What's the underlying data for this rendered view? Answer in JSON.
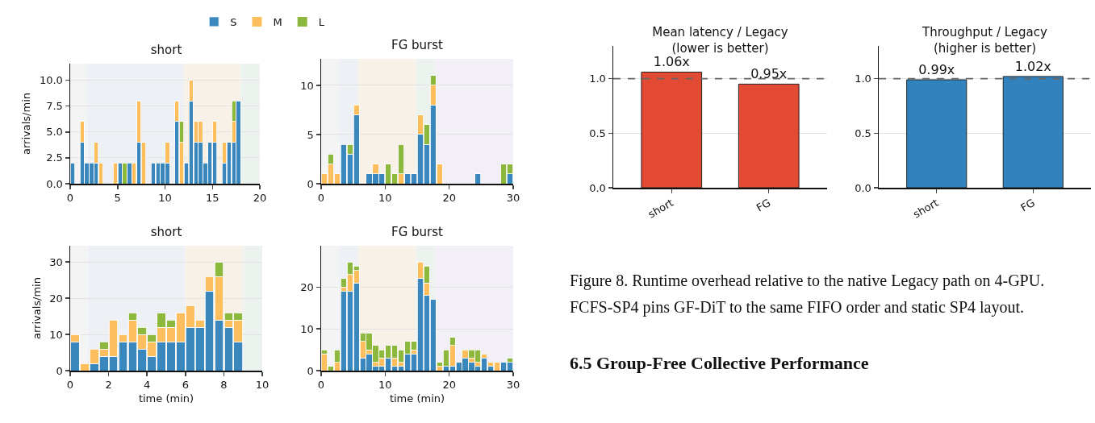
{
  "chart_data": [
    {
      "type": "bar",
      "title": "short",
      "ylabel": "arrivals/min",
      "stacked": true,
      "legend": "top",
      "grid": "y",
      "x": [
        0.25,
        1.25,
        1.75,
        2.25,
        2.75,
        3.25,
        4.75,
        5.25,
        5.75,
        6.25,
        6.75,
        7.25,
        7.75,
        8.75,
        9.25,
        9.75,
        10.25,
        11.25,
        11.75,
        12.25,
        12.75,
        13.25,
        13.75,
        14.25,
        14.75,
        15.25,
        16.25,
        16.75,
        17.25,
        17.75
      ],
      "series": [
        {
          "name": "S",
          "color": "#3a87bd",
          "values": [
            2,
            4,
            2,
            2,
            2,
            0,
            0,
            2,
            0,
            2,
            0,
            4,
            0,
            2,
            2,
            2,
            2,
            6,
            0,
            2,
            8,
            4,
            4,
            2,
            4,
            4,
            2,
            4,
            4,
            8
          ]
        },
        {
          "name": "M",
          "color": "#fdbf5e",
          "values": [
            0,
            2,
            0,
            0,
            2,
            2,
            2,
            0,
            0,
            0,
            2,
            4,
            4,
            0,
            0,
            0,
            2,
            2,
            4,
            0,
            2,
            2,
            2,
            0,
            0,
            2,
            2,
            0,
            2,
            0
          ]
        },
        {
          "name": "L",
          "color": "#8db83e",
          "values": [
            0,
            0,
            0,
            0,
            0,
            0,
            0,
            0,
            2,
            0,
            0,
            0,
            0,
            0,
            0,
            0,
            0,
            0,
            2,
            0,
            0,
            0,
            0,
            0,
            0,
            0,
            0,
            0,
            2,
            0
          ]
        }
      ],
      "xlim": [
        0,
        20
      ],
      "xticks": [
        0,
        5,
        10,
        15,
        20
      ],
      "ylim": [
        0,
        11.6
      ],
      "yticks": [
        {
          "value": 0,
          "label": "0.0"
        },
        {
          "value": 2.5,
          "label": "2.5"
        },
        {
          "value": 5,
          "label": "5.0"
        },
        {
          "value": 7.5,
          "label": "7.5"
        },
        {
          "value": 10,
          "label": "10.0"
        }
      ],
      "bands": [
        {
          "axis": "x",
          "from": 0,
          "to": 1.8,
          "color": "#f4f4f4"
        },
        {
          "axis": "x",
          "from": 1.8,
          "to": 12,
          "color": "#edf1f6"
        },
        {
          "axis": "x",
          "from": 12,
          "to": 18,
          "color": "#f8f1e7"
        },
        {
          "axis": "x",
          "from": 18,
          "to": 20,
          "color": "#ecf3ee"
        }
      ]
    },
    {
      "type": "bar",
      "title": "FG burst",
      "stacked": true,
      "grid": "y",
      "x": [
        0.5,
        1.5,
        2.5,
        3.5,
        4.5,
        5.5,
        7.5,
        8.5,
        9.5,
        10.5,
        11.5,
        12.5,
        13.5,
        14.5,
        15.5,
        16.5,
        17.5,
        18.5,
        24.5,
        28.5,
        29.5
      ],
      "series": [
        {
          "color": "#3a87bd",
          "values": [
            0,
            0,
            0,
            4,
            3,
            7,
            1,
            1,
            1,
            0,
            0,
            0,
            1,
            1,
            5,
            4,
            8,
            0,
            1,
            0,
            1
          ]
        },
        {
          "color": "#fdbf5e",
          "values": [
            1,
            2,
            1,
            0,
            0,
            1,
            0,
            1,
            0,
            0,
            0,
            1,
            0,
            0,
            2,
            0,
            2,
            2,
            0,
            0,
            0
          ]
        },
        {
          "color": "#8db83e",
          "values": [
            0,
            1,
            0,
            0,
            1,
            0,
            0,
            0,
            0,
            2,
            1,
            3,
            0,
            0,
            0,
            2,
            1,
            0,
            0,
            2,
            1
          ]
        }
      ],
      "xlim": [
        0,
        30
      ],
      "xticks": [
        0,
        10,
        20,
        30
      ],
      "ylim": [
        0,
        12.7
      ],
      "yticks": [
        0,
        5,
        10
      ],
      "bands": [
        {
          "axis": "x",
          "from": 0,
          "to": 2.8,
          "color": "#f4f4f4"
        },
        {
          "axis": "x",
          "from": 2.8,
          "to": 5.8,
          "color": "#edf1f6"
        },
        {
          "axis": "x",
          "from": 5.8,
          "to": 14.8,
          "color": "#f8f1e7"
        },
        {
          "axis": "x",
          "from": 14.8,
          "to": 17.8,
          "color": "#ecf3ee"
        },
        {
          "axis": "x",
          "from": 17.8,
          "to": 30,
          "color": "#f2eff6"
        }
      ]
    },
    {
      "type": "bar",
      "title": "short",
      "xlabel": "time (min)",
      "ylabel": "arrivals/min",
      "stacked": true,
      "grid": "y",
      "x": [
        0.25,
        0.75,
        1.25,
        1.75,
        2.25,
        2.75,
        3.25,
        3.75,
        4.25,
        4.75,
        5.25,
        5.75,
        6.25,
        6.75,
        7.25,
        7.75,
        8.25,
        8.75
      ],
      "series": [
        {
          "color": "#3a87bd",
          "values": [
            8,
            0,
            2,
            4,
            4,
            8,
            8,
            6,
            4,
            8,
            8,
            8,
            12,
            12,
            22,
            14,
            12,
            8
          ]
        },
        {
          "color": "#fdbf5e",
          "values": [
            2,
            2,
            4,
            2,
            10,
            2,
            6,
            4,
            4,
            4,
            4,
            8,
            6,
            2,
            4,
            12,
            2,
            6
          ]
        },
        {
          "color": "#8db83e",
          "values": [
            0,
            0,
            0,
            2,
            0,
            0,
            2,
            2,
            2,
            4,
            2,
            0,
            0,
            0,
            0,
            4,
            2,
            2
          ]
        }
      ],
      "xlim": [
        0,
        10
      ],
      "xticks": [
        0,
        2,
        4,
        6,
        8,
        10
      ],
      "ylim": [
        0,
        34.5
      ],
      "yticks": [
        0,
        10,
        20,
        30
      ],
      "bands": [
        {
          "axis": "x",
          "from": 0,
          "to": 0.9,
          "color": "#f4f4f4"
        },
        {
          "axis": "x",
          "from": 0.9,
          "to": 6,
          "color": "#edf1f6"
        },
        {
          "axis": "x",
          "from": 6,
          "to": 9,
          "color": "#f8f1e7"
        },
        {
          "axis": "x",
          "from": 9,
          "to": 10,
          "color": "#ecf3ee"
        }
      ]
    },
    {
      "type": "bar",
      "title": "FG burst",
      "xlabel": "time (min)",
      "stacked": true,
      "grid": "y",
      "x": [
        0.5,
        1.5,
        2.5,
        3.5,
        4.5,
        5.5,
        6.5,
        7.5,
        8.5,
        9.5,
        10.5,
        11.5,
        12.5,
        13.5,
        14.5,
        15.5,
        16.5,
        17.5,
        18.5,
        19.5,
        20.5,
        21.5,
        22.5,
        23.5,
        24.5,
        25.5,
        26.5,
        27.5,
        28.5,
        29.5
      ],
      "series": [
        {
          "color": "#3a87bd",
          "values": [
            0,
            0,
            0,
            19,
            19,
            21,
            3,
            4,
            1,
            1,
            3,
            1,
            1,
            4,
            4,
            22,
            18,
            17,
            0,
            1,
            1,
            2,
            3,
            2,
            1,
            3,
            1,
            0,
            2,
            2
          ]
        },
        {
          "color": "#fdbf5e",
          "values": [
            4,
            0,
            2,
            1,
            4,
            3,
            4,
            1,
            1,
            2,
            0,
            2,
            1,
            0,
            1,
            4,
            3,
            0,
            1,
            0,
            5,
            0,
            2,
            1,
            1,
            1,
            1,
            2,
            0,
            0
          ]
        },
        {
          "color": "#8db83e",
          "values": [
            1,
            1,
            3,
            2,
            3,
            1,
            2,
            4,
            4,
            2,
            3,
            3,
            3,
            3,
            2,
            0,
            4,
            0,
            1,
            4,
            2,
            0,
            0,
            2,
            3,
            0,
            0,
            0,
            0,
            1
          ]
        }
      ],
      "xlim": [
        0,
        30
      ],
      "xticks": [
        0,
        10,
        20,
        30
      ],
      "ylim": [
        0,
        29.9
      ],
      "yticks": [
        0,
        10,
        20
      ],
      "bands": [
        {
          "axis": "x",
          "from": 0,
          "to": 2.8,
          "color": "#f4f4f4"
        },
        {
          "axis": "x",
          "from": 2.8,
          "to": 5.8,
          "color": "#edf1f6"
        },
        {
          "axis": "x",
          "from": 5.8,
          "to": 14.8,
          "color": "#f8f1e7"
        },
        {
          "axis": "x",
          "from": 14.8,
          "to": 17.8,
          "color": "#ecf3ee"
        },
        {
          "axis": "x",
          "from": 17.8,
          "to": 30,
          "color": "#f2eff6"
        }
      ]
    },
    {
      "type": "bar",
      "title": "Mean latency / Legacy\n(lower is better)",
      "categories": [
        "short",
        "FG"
      ],
      "values": [
        1.06,
        0.95
      ],
      "value_labels": [
        "1.06x",
        "0.95x"
      ],
      "color": "#e34a33",
      "grid": "y",
      "ylim": [
        0,
        1.3
      ],
      "yticks": [
        {
          "value": 0,
          "label": "0.0"
        },
        {
          "value": 0.5,
          "label": "0.5"
        },
        {
          "value": 1,
          "label": "1.0"
        }
      ],
      "ref_lines": [
        {
          "axis": "y",
          "value": 1,
          "color": "#666666",
          "line_style": "dashed"
        }
      ]
    },
    {
      "type": "bar",
      "title": "Throughput / Legacy\n(higher is better)",
      "categories": [
        "short",
        "FG"
      ],
      "values": [
        0.99,
        1.02
      ],
      "value_labels": [
        "0.99x",
        "1.02x"
      ],
      "color": "#3182bd",
      "grid": "y",
      "ylim": [
        0,
        1.3
      ],
      "yticks": [
        {
          "value": 0,
          "label": "0.0"
        },
        {
          "value": 0.5,
          "label": "0.5"
        },
        {
          "value": 1,
          "label": "1.0"
        }
      ],
      "ref_lines": [
        {
          "axis": "y",
          "value": 1,
          "color": "#666666",
          "line_style": "dashed"
        }
      ]
    },
    {
      "type": "other",
      "annotations": [
        "Figure 8. Runtime overhead relative to the native Legacy path on 4-GPU. FCFS-SP4 pins GF-DiT to the same FIFO order and static SP4 layout.",
        "6.5 Group-Free Collective Performance"
      ]
    }
  ]
}
